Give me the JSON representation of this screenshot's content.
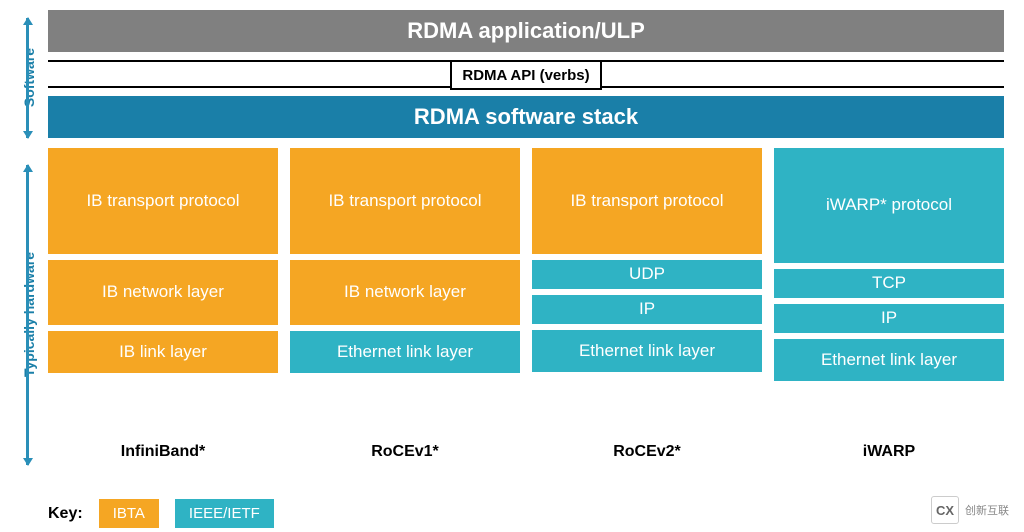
{
  "colors": {
    "gray": "#808080",
    "blue_dark": "#1a7fa8",
    "orange": "#f5a623",
    "teal": "#2fb3c4",
    "arrow_sw": "#2a8fb8",
    "arrow_hw": "#2a8fb8",
    "vtext": "#1a7fa8"
  },
  "vlabels": {
    "software": "Software",
    "hardware": "Typically hardware"
  },
  "top": {
    "app": "RDMA application/ULP",
    "api": "RDMA API (verbs)",
    "stack": "RDMA software stack"
  },
  "columns": [
    {
      "label": "InfiniBand*",
      "layers": [
        {
          "text": "IB transport protocol",
          "color": "orange",
          "h": "h-transport"
        },
        {
          "text": "IB network layer",
          "color": "orange",
          "h": "h-network"
        },
        {
          "text": "IB link layer",
          "color": "orange",
          "h": "h-link"
        }
      ]
    },
    {
      "label": "RoCEv1*",
      "layers": [
        {
          "text": "IB transport protocol",
          "color": "orange",
          "h": "h-transport"
        },
        {
          "text": "IB network layer",
          "color": "orange",
          "h": "h-network"
        },
        {
          "text": "Ethernet link layer",
          "color": "teal",
          "h": "h-link"
        }
      ]
    },
    {
      "label": "RoCEv2*",
      "layers": [
        {
          "text": "IB transport protocol",
          "color": "orange",
          "h": "h-transport"
        },
        {
          "text": "UDP",
          "color": "teal",
          "h": "h-half"
        },
        {
          "text": "IP",
          "color": "teal",
          "h": "h-half"
        },
        {
          "text": "Ethernet link layer",
          "color": "teal",
          "h": "h-link"
        }
      ]
    },
    {
      "label": "iWARP",
      "layers": [
        {
          "text": "iWARP* protocol",
          "color": "teal",
          "h": "h-iwarp"
        },
        {
          "text": "TCP",
          "color": "teal",
          "h": "h-half"
        },
        {
          "text": "IP",
          "color": "teal",
          "h": "h-half"
        },
        {
          "text": "Ethernet link layer",
          "color": "teal",
          "h": "h-link"
        }
      ]
    }
  ],
  "key": {
    "label": "Key:",
    "items": [
      {
        "text": "IBTA",
        "color": "orange"
      },
      {
        "text": "IEEE/IETF",
        "color": "teal"
      }
    ]
  },
  "watermark": {
    "icon": "CX",
    "text": "创新互联"
  }
}
